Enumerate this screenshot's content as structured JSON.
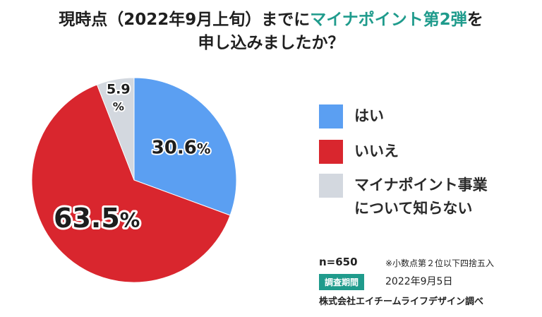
{
  "title": {
    "line1_pre": "現時点（2022年9月上旬）までに",
    "line1_accent": "マイナポイント第2弾",
    "line1_post": "を",
    "line2": "申し込みましたか？"
  },
  "chart_data": {
    "type": "pie",
    "title": "現時点（2022年9月上旬）までにマイナポイント第2弾を申し込みましたか？",
    "slices": [
      {
        "label": "はい",
        "value": 30.6,
        "display": "30.6",
        "color": "#5b9ff2"
      },
      {
        "label": "いいえ",
        "value": 63.5,
        "display": "63.5",
        "color": "#d9262e"
      },
      {
        "label": "マイナポイント事業について知らない",
        "value": 5.9,
        "display": "5.9",
        "color": "#d3d8df"
      }
    ],
    "percent_sign": "%",
    "legend": [
      "はい",
      "いいえ",
      "マイナポイント事業について知らない"
    ],
    "legend_lines": [
      [
        "はい"
      ],
      [
        "いいえ"
      ],
      [
        "マイナポイント事業",
        "について知らない"
      ]
    ],
    "legend_position": "right"
  },
  "footer": {
    "n": "n=650",
    "note": "※小数点第２位以下四捨五入",
    "period_label": "調査期間",
    "period_date": "2022年9月5日",
    "credit": "株式会社エイチームライフデザイン調べ"
  }
}
